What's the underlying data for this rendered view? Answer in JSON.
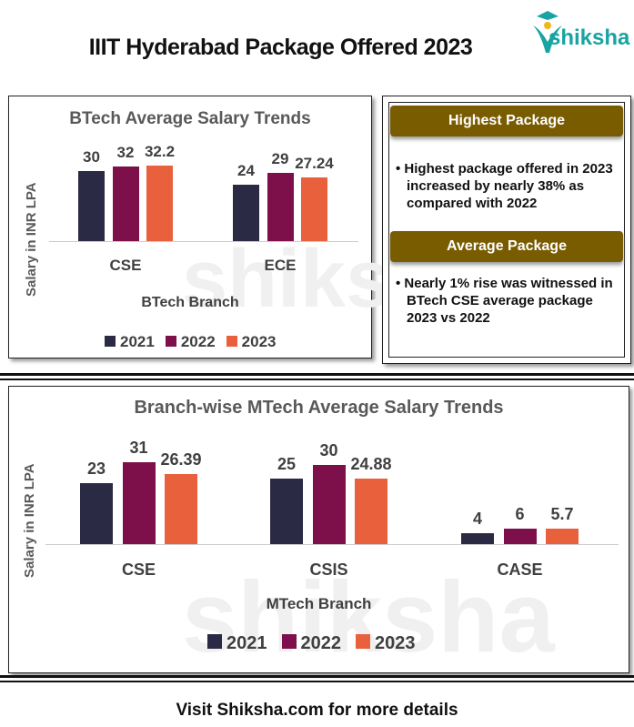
{
  "header": {
    "title": "IIIT Hyderabad Package Offered 2023",
    "logo_text": "shiksha"
  },
  "colors": {
    "2021": "#2b2a45",
    "2022": "#7d0f4a",
    "2023": "#e8603c",
    "header_bg": "#7a5c00"
  },
  "watermark": "shiksha",
  "info_panel": {
    "highest_title": "Highest Package",
    "highest_text": "• Highest package offered in 2023 increased by nearly 38% as compared with 2022",
    "average_title": "Average Package",
    "average_text": "• Nearly 1% rise was witnessed in BTech CSE average package 2023 vs 2022"
  },
  "chart_data": [
    {
      "type": "bar",
      "title": "BTech Average Salary Trends",
      "xlabel": "BTech Branch",
      "ylabel": "Salary in INR LPA",
      "categories": [
        "CSE",
        "ECE"
      ],
      "series": [
        {
          "name": "2021",
          "values": [
            30,
            24
          ]
        },
        {
          "name": "2022",
          "values": [
            32,
            29
          ]
        },
        {
          "name": "2023",
          "values": [
            32.2,
            27.24
          ]
        }
      ],
      "value_labels": [
        [
          "30",
          "24"
        ],
        [
          "32",
          "29"
        ],
        [
          "32.2",
          "27.24"
        ]
      ],
      "legend": "bottom",
      "grid": false
    },
    {
      "type": "bar",
      "title": "Branch-wise MTech Average Salary Trends",
      "xlabel": "MTech Branch",
      "ylabel": "Salary in INR LPA",
      "categories": [
        "CSE",
        "CSIS",
        "CASE"
      ],
      "series": [
        {
          "name": "2021",
          "values": [
            23,
            25,
            4
          ]
        },
        {
          "name": "2022",
          "values": [
            31,
            30,
            6
          ]
        },
        {
          "name": "2023",
          "values": [
            26.39,
            24.88,
            5.7
          ]
        }
      ],
      "value_labels": [
        [
          "23",
          "25",
          "4"
        ],
        [
          "31",
          "30",
          "6"
        ],
        [
          "26.39",
          "24.88",
          "5.7"
        ]
      ],
      "legend": "bottom",
      "grid": false
    }
  ],
  "footer": {
    "text": "Visit Shiksha.com for more details"
  }
}
